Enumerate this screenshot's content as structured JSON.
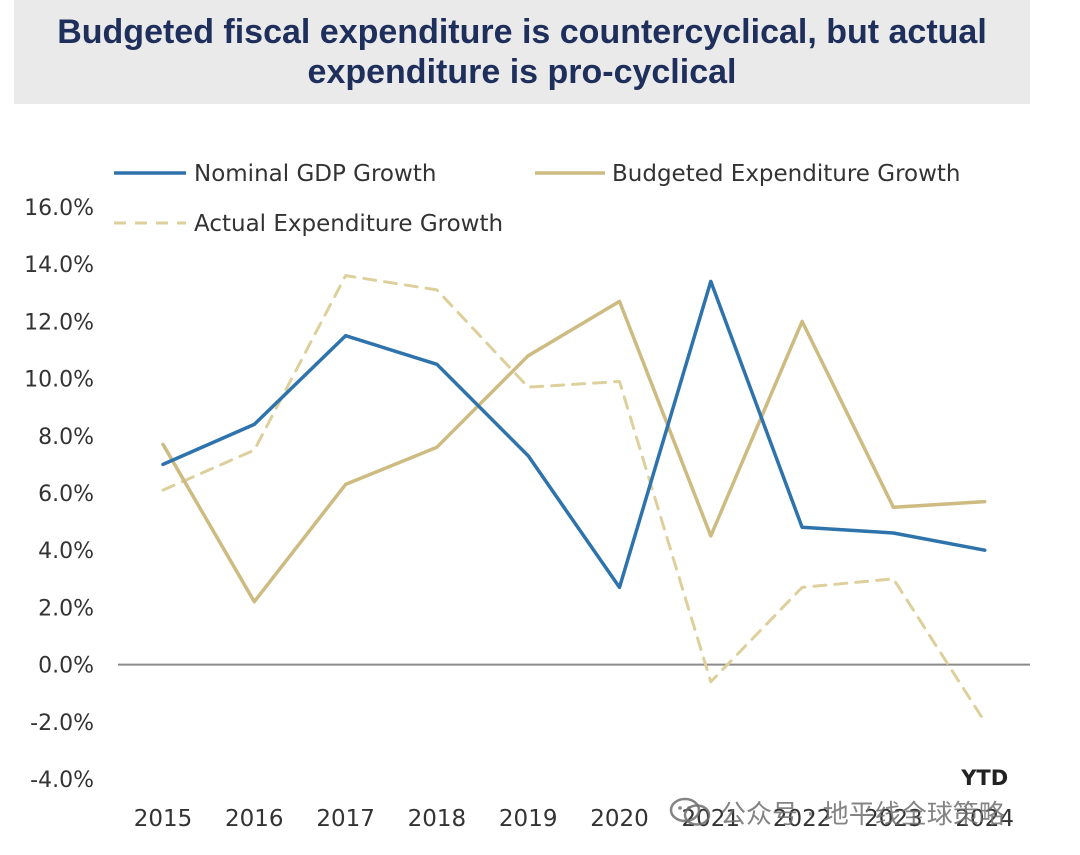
{
  "title": "Budgeted fiscal expenditure is countercyclical, but actual expenditure is pro-cyclical",
  "watermark": "公众号 · 地平线全球策略",
  "colors": {
    "title_text": "#1f2f5c",
    "title_bg": "#eaeaea",
    "nominal_gdp": "#2e73ac",
    "budgeted": "#cdbb82",
    "actual": "#ddd09c",
    "zero_line": "#8a8a8a"
  },
  "chart_data": {
    "type": "line",
    "categories": [
      "2015",
      "2016",
      "2017",
      "2018",
      "2019",
      "2020",
      "2021",
      "2022",
      "2023",
      "2024"
    ],
    "category_note": "YTD",
    "ylim": [
      -4.0,
      16.0
    ],
    "yticks": [
      "16.0%",
      "14.0%",
      "12.0%",
      "10.0%",
      "8.0%",
      "6.0%",
      "4.0%",
      "2.0%",
      "0.0%",
      "-2.0%",
      "-4.0%"
    ],
    "ytick_values": [
      16,
      14,
      12,
      10,
      8,
      6,
      4,
      2,
      0,
      -2,
      -4
    ],
    "grid": false,
    "zero_line": true,
    "legend": "top",
    "series": [
      {
        "name": "Nominal GDP Growth",
        "style": "solid",
        "values": [
          7.0,
          8.4,
          11.5,
          10.5,
          7.3,
          2.7,
          13.4,
          4.8,
          4.6,
          4.0
        ]
      },
      {
        "name": "Budgeted Expenditure Growth",
        "style": "solid",
        "values": [
          7.7,
          2.2,
          6.3,
          7.6,
          10.8,
          12.7,
          4.5,
          12.0,
          5.5,
          5.7
        ]
      },
      {
        "name": "Actual Expenditure Growth",
        "style": "dashed",
        "values": [
          6.1,
          7.5,
          13.6,
          13.1,
          9.7,
          9.9,
          -0.6,
          2.7,
          3.0,
          -2.0
        ]
      }
    ]
  }
}
